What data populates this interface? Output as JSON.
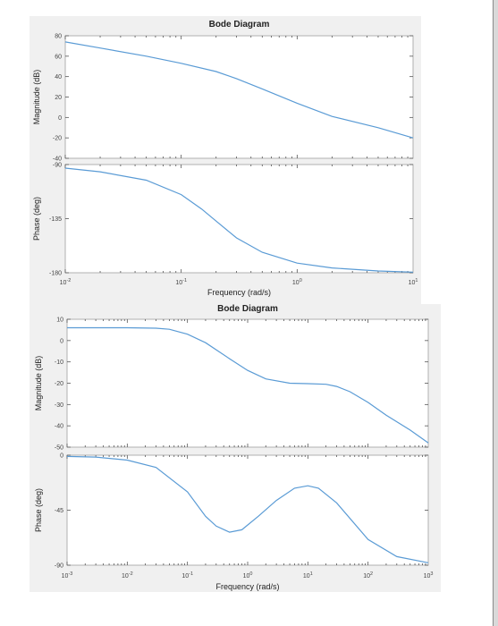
{
  "chart_data": [
    {
      "type": "line",
      "title": "Bode Diagram",
      "xlabel": "Frequency  (rad/s)",
      "xscale": "log",
      "xlim": [
        0.01,
        10
      ],
      "x_tick_labels": [
        "10-2",
        "10-1",
        "100",
        "101"
      ],
      "panels": [
        {
          "ylabel": "Magnitude (dB)",
          "ylim": [
            -40,
            80
          ],
          "y_ticks": [
            80,
            60,
            40,
            20,
            0,
            -20,
            -40
          ],
          "series": [
            {
              "x": [
                0.01,
                0.02,
                0.05,
                0.1,
                0.2,
                0.3,
                0.5,
                1,
                2,
                5,
                10
              ],
              "y": [
                74,
                68,
                60,
                53,
                45,
                38,
                28,
                14,
                1,
                -10,
                -20
              ]
            }
          ]
        },
        {
          "ylabel": "Phase (deg)",
          "ylim": [
            -180,
            -90
          ],
          "y_ticks": [
            -90,
            -135,
            -180
          ],
          "series": [
            {
              "x": [
                0.01,
                0.02,
                0.05,
                0.1,
                0.15,
                0.2,
                0.3,
                0.5,
                1,
                2,
                5,
                10
              ],
              "y": [
                -93,
                -96,
                -103,
                -115,
                -127,
                -137,
                -151,
                -163,
                -172,
                -176,
                -178.5,
                -179.5
              ]
            }
          ]
        }
      ]
    },
    {
      "type": "line",
      "title": "Bode Diagram",
      "xlabel": "Frequency  (rad/s)",
      "xscale": "log",
      "xlim": [
        0.001,
        1000
      ],
      "x_tick_labels": [
        "10-3",
        "10-2",
        "10-1",
        "100",
        "101",
        "102",
        "103"
      ],
      "panels": [
        {
          "ylabel": "Magnitude (dB)",
          "ylim": [
            -50,
            10
          ],
          "y_ticks": [
            10,
            0,
            -10,
            -20,
            -30,
            -40,
            -50
          ],
          "series": [
            {
              "x": [
                0.001,
                0.01,
                0.03,
                0.05,
                0.1,
                0.2,
                0.5,
                1,
                2,
                5,
                10,
                20,
                30,
                50,
                100,
                200,
                500,
                1000
              ],
              "y": [
                6,
                6,
                5.8,
                5.3,
                3,
                -1,
                -8.5,
                -14,
                -18,
                -20,
                -20.2,
                -20.5,
                -21.5,
                -24,
                -29,
                -35,
                -42,
                -48
              ]
            }
          ]
        },
        {
          "ylabel": "Phase (deg)",
          "ylim": [
            -90,
            0
          ],
          "y_ticks": [
            0,
            -45,
            -90
          ],
          "series": [
            {
              "x": [
                0.001,
                0.003,
                0.01,
                0.03,
                0.1,
                0.2,
                0.3,
                0.5,
                0.8,
                1.5,
                3,
                6,
                10,
                15,
                30,
                100,
                300,
                1000
              ],
              "y": [
                -1,
                -1.5,
                -4,
                -10,
                -30,
                -50,
                -58,
                -63,
                -61,
                -50,
                -37,
                -27,
                -25,
                -27,
                -39,
                -69,
                -83,
                -88
              ]
            }
          ]
        }
      ]
    }
  ]
}
